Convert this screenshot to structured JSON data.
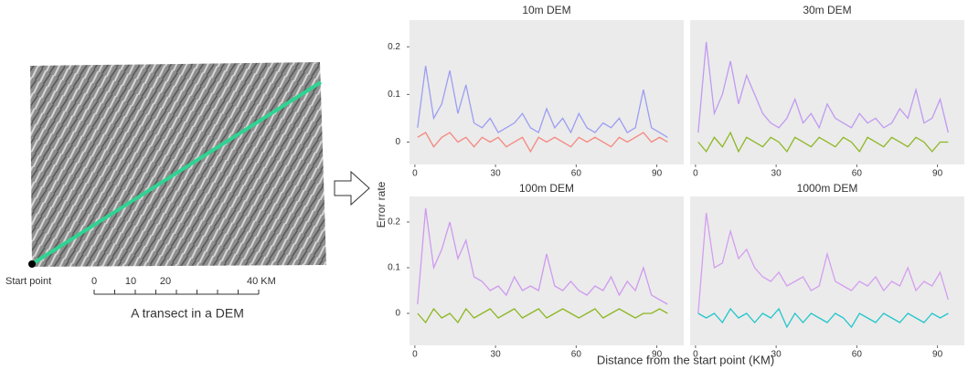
{
  "map": {
    "start_label": "Start point",
    "scale_labels": [
      "0",
      "10",
      "20",
      "40 KM"
    ],
    "caption": "A transect in a DEM"
  },
  "figure": {
    "y_label": "Error rate",
    "x_label": "Distance from the start point (KM)"
  },
  "chart_data": [
    {
      "type": "line",
      "title": "10m DEM",
      "x": [
        1,
        4,
        7,
        10,
        13,
        16,
        19,
        22,
        25,
        28,
        31,
        34,
        37,
        40,
        43,
        46,
        49,
        52,
        55,
        58,
        61,
        64,
        67,
        70,
        73,
        76,
        79,
        82,
        85,
        88,
        91,
        94
      ],
      "series": [
        {
          "color": "#8f8ff5",
          "values": [
            0.03,
            0.16,
            0.05,
            0.08,
            0.15,
            0.06,
            0.12,
            0.04,
            0.03,
            0.05,
            0.02,
            0.03,
            0.04,
            0.06,
            0.03,
            0.02,
            0.07,
            0.03,
            0.05,
            0.02,
            0.06,
            0.03,
            0.02,
            0.04,
            0.03,
            0.05,
            0.02,
            0.03,
            0.11,
            0.03,
            0.02,
            0.01
          ]
        },
        {
          "color": "#f8766d",
          "values": [
            0.01,
            0.02,
            -0.01,
            0.01,
            0.02,
            0.0,
            0.01,
            -0.01,
            0.01,
            0.0,
            0.01,
            -0.01,
            0.0,
            0.01,
            -0.02,
            0.01,
            0.0,
            0.01,
            0.0,
            -0.01,
            0.01,
            0.0,
            0.01,
            0.0,
            -0.01,
            0.01,
            0.0,
            0.01,
            0.02,
            0.0,
            0.01,
            0.0
          ]
        }
      ],
      "xlim": [
        -2,
        100
      ],
      "xticks": [
        0,
        30,
        60,
        90
      ],
      "ylim": [
        -0.047,
        0.256
      ],
      "yticks": [
        0,
        0.1,
        0.2
      ]
    },
    {
      "type": "line",
      "title": "30m DEM",
      "x": [
        1,
        4,
        7,
        10,
        13,
        16,
        19,
        22,
        25,
        28,
        31,
        34,
        37,
        40,
        43,
        46,
        49,
        52,
        55,
        58,
        61,
        64,
        67,
        70,
        73,
        76,
        79,
        82,
        85,
        88,
        91,
        94
      ],
      "series": [
        {
          "color": "#b98cf2",
          "values": [
            0.02,
            0.21,
            0.06,
            0.1,
            0.17,
            0.08,
            0.14,
            0.1,
            0.06,
            0.04,
            0.03,
            0.05,
            0.09,
            0.04,
            0.06,
            0.03,
            0.08,
            0.05,
            0.04,
            0.03,
            0.06,
            0.04,
            0.05,
            0.03,
            0.04,
            0.07,
            0.05,
            0.11,
            0.04,
            0.05,
            0.09,
            0.02
          ]
        },
        {
          "color": "#7cae00",
          "values": [
            0.0,
            -0.02,
            0.01,
            -0.01,
            0.02,
            -0.02,
            0.01,
            0.0,
            -0.01,
            0.01,
            0.0,
            -0.02,
            0.01,
            0.0,
            -0.01,
            0.01,
            0.0,
            -0.01,
            0.01,
            0.0,
            -0.02,
            0.01,
            0.0,
            -0.01,
            0.01,
            0.0,
            -0.01,
            0.01,
            0.0,
            -0.02,
            0.0,
            0.0
          ]
        }
      ],
      "xlim": [
        -2,
        100
      ],
      "xticks": [
        0,
        30,
        60,
        90
      ],
      "ylim": [
        -0.047,
        0.256
      ]
    },
    {
      "type": "line",
      "title": "100m DEM",
      "x": [
        1,
        4,
        7,
        10,
        13,
        16,
        19,
        22,
        25,
        28,
        31,
        34,
        37,
        40,
        43,
        46,
        49,
        52,
        55,
        58,
        61,
        64,
        67,
        70,
        73,
        76,
        79,
        82,
        85,
        88,
        91,
        94
      ],
      "series": [
        {
          "color": "#c98cf0",
          "values": [
            0.02,
            0.23,
            0.1,
            0.14,
            0.2,
            0.12,
            0.16,
            0.08,
            0.07,
            0.05,
            0.06,
            0.04,
            0.08,
            0.05,
            0.06,
            0.05,
            0.13,
            0.06,
            0.05,
            0.07,
            0.05,
            0.04,
            0.06,
            0.05,
            0.08,
            0.04,
            0.07,
            0.05,
            0.1,
            0.04,
            0.03,
            0.02
          ]
        },
        {
          "color": "#7cae00",
          "values": [
            0.0,
            -0.02,
            0.01,
            -0.01,
            0.0,
            -0.02,
            0.01,
            -0.01,
            0.0,
            0.01,
            -0.01,
            0.0,
            0.01,
            -0.01,
            0.0,
            0.01,
            -0.01,
            0.0,
            0.01,
            0.0,
            -0.01,
            0.0,
            0.01,
            -0.01,
            0.0,
            0.01,
            0.0,
            -0.01,
            0.0,
            0.0,
            0.01,
            0.0
          ]
        }
      ],
      "xlim": [
        -2,
        100
      ],
      "xticks": [
        0,
        30,
        60,
        90
      ],
      "ylim": [
        -0.07,
        0.256
      ],
      "yticks": [
        0,
        0.1,
        0.2
      ]
    },
    {
      "type": "line",
      "title": "1000m DEM",
      "x": [
        1,
        4,
        7,
        10,
        13,
        16,
        19,
        22,
        25,
        28,
        31,
        34,
        37,
        40,
        43,
        46,
        49,
        52,
        55,
        58,
        61,
        64,
        67,
        70,
        73,
        76,
        79,
        82,
        85,
        88,
        91,
        94
      ],
      "series": [
        {
          "color": "#d090f0",
          "values": [
            0.0,
            0.22,
            0.1,
            0.11,
            0.18,
            0.12,
            0.14,
            0.1,
            0.08,
            0.07,
            0.09,
            0.06,
            0.07,
            0.08,
            0.05,
            0.06,
            0.13,
            0.07,
            0.06,
            0.05,
            0.07,
            0.06,
            0.08,
            0.05,
            0.07,
            0.06,
            0.1,
            0.05,
            0.07,
            0.06,
            0.09,
            0.03
          ]
        },
        {
          "color": "#00bfc4",
          "values": [
            0.0,
            -0.01,
            0.0,
            -0.02,
            0.01,
            -0.01,
            0.0,
            -0.02,
            0.0,
            -0.01,
            0.01,
            -0.03,
            0.0,
            -0.02,
            0.0,
            -0.01,
            -0.02,
            0.0,
            -0.01,
            -0.03,
            0.0,
            -0.01,
            -0.02,
            0.0,
            -0.01,
            -0.02,
            0.0,
            -0.01,
            -0.02,
            0.0,
            -0.01,
            0.0
          ]
        }
      ],
      "xlim": [
        -2,
        100
      ],
      "xticks": [
        0,
        30,
        60,
        90
      ],
      "ylim": [
        -0.07,
        0.256
      ]
    }
  ]
}
